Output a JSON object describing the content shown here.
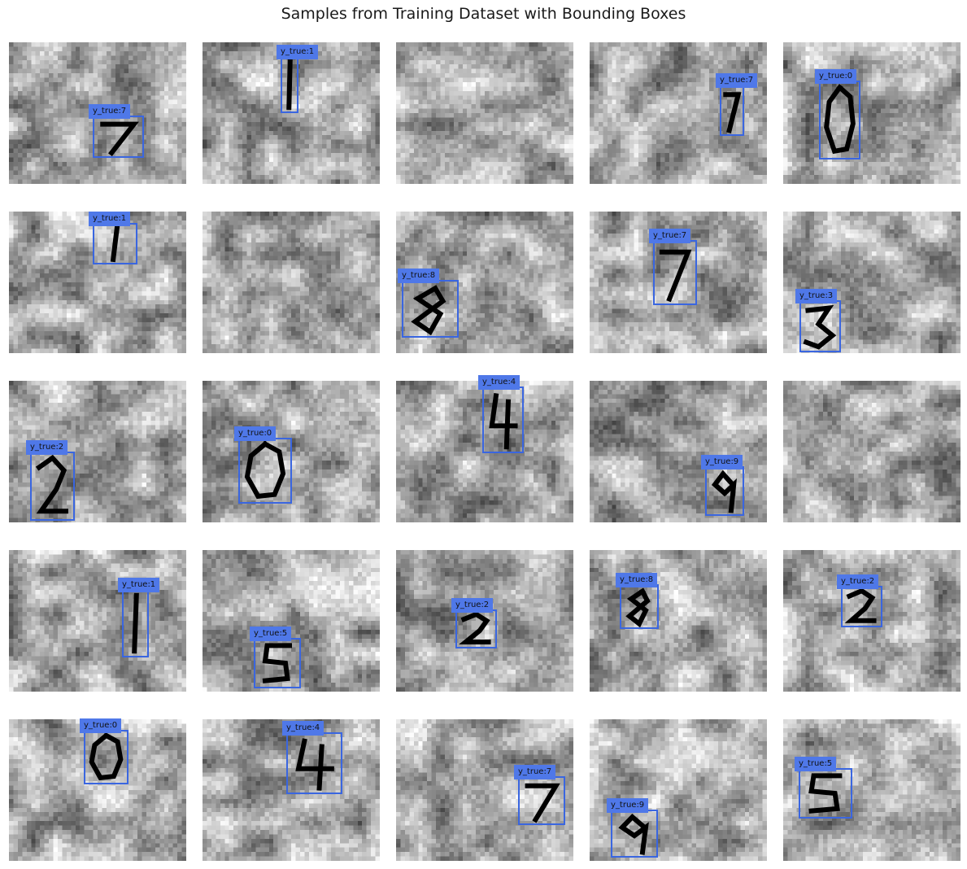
{
  "title": "Samples from Training Dataset with Bounding Boxes",
  "colors": {
    "box": "#3a66e0",
    "label_bg": "#4f78e8",
    "ink": "#000000"
  },
  "samples": [
    {
      "label": "y_true:7"
    },
    {
      "label": "y_true:1"
    },
    {
      "label": null
    },
    {
      "label": "y_true:7"
    },
    {
      "label": "y_true:0"
    },
    {
      "label": "y_true:1"
    },
    {
      "label": null
    },
    {
      "label": "y_true:8"
    },
    {
      "label": "y_true:7"
    },
    {
      "label": "y_true:3"
    },
    {
      "label": "y_true:2"
    },
    {
      "label": "y_true:0"
    },
    {
      "label": "y_true:4"
    },
    {
      "label": "y_true:9"
    },
    {
      "label": null
    },
    {
      "label": "y_true:1"
    },
    {
      "label": "y_true:5"
    },
    {
      "label": "y_true:2"
    },
    {
      "label": "y_true:8"
    },
    {
      "label": "y_true:2"
    },
    {
      "label": "y_true:0"
    },
    {
      "label": "y_true:4"
    },
    {
      "label": "y_true:7"
    },
    {
      "label": "y_true:9"
    },
    {
      "label": "y_true:5"
    }
  ]
}
